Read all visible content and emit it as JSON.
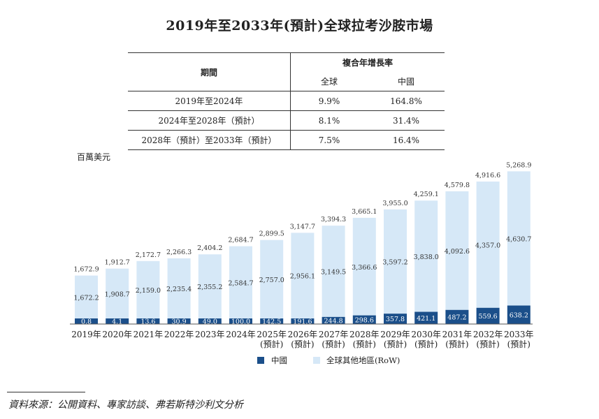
{
  "title": "2019年至2033年(預計)全球拉考沙胺市場",
  "cagr_table": {
    "header_period": "期間",
    "header_cagr": "複合年增長率",
    "header_global": "全球",
    "header_china": "中國",
    "rows": [
      {
        "period": "2019年至2024年",
        "global": "9.9%",
        "china": "164.8%"
      },
      {
        "period": "2024年至2028年（預計）",
        "global": "8.1%",
        "china": "31.4%"
      },
      {
        "period": "2028年（預計）至2033年（預計）",
        "global": "7.5%",
        "china": "16.4%"
      }
    ]
  },
  "unit_label": "百萬美元",
  "source": "資料來源：公開資料、專家訪談、弗若斯特沙利文分析",
  "colors": {
    "china": "#1b4f8a",
    "row": "#d6e8f7"
  },
  "chart_data": {
    "type": "bar",
    "stacked": true,
    "categories": [
      "2019年",
      "2020年",
      "2021年",
      "2022年",
      "2023年",
      "2024年",
      "2025年\n(預計)",
      "2026年\n(預計)",
      "2027年\n(預計)",
      "2028年\n(預計)",
      "2029年\n(預計)",
      "2030年\n(預計)",
      "2031年\n(預計)",
      "2032年\n(預計)",
      "2033年\n(預計)"
    ],
    "totals": [
      1672.9,
      1912.7,
      2172.7,
      2266.3,
      2404.2,
      2684.7,
      2899.5,
      3147.7,
      3394.3,
      3665.1,
      3955.0,
      4259.1,
      4579.8,
      4916.6,
      5268.9
    ],
    "total_labels": [
      "1,672.9",
      "1,912.7",
      "2,172.7",
      "2,266.3",
      "2,404.2",
      "2,684.7",
      "2,899.5",
      "3,147.7",
      "3,394.3",
      "3,665.1",
      "3,955.0",
      "4,259.1",
      "4,579.8",
      "4,916.6",
      "5,268.9"
    ],
    "series": [
      {
        "name": "中國",
        "values": [
          0.8,
          4.1,
          13.6,
          30.9,
          49.0,
          100.0,
          142.5,
          191.6,
          244.8,
          298.6,
          357.8,
          421.1,
          487.2,
          559.6,
          638.2
        ],
        "labels": [
          "0.8",
          "4.1",
          "13.6",
          "30.9",
          "49.0",
          "100.0",
          "142.5",
          "191.6",
          "244.8",
          "298.6",
          "357.8",
          "421.1",
          "487.2",
          "559.6",
          "638.2"
        ]
      },
      {
        "name": "全球其他地區(RoW)",
        "values": [
          1672.2,
          1908.7,
          2159.0,
          2235.4,
          2355.2,
          2584.7,
          2757.0,
          2956.1,
          3149.5,
          3366.6,
          3597.2,
          3838.0,
          4092.6,
          4357.0,
          4630.7
        ],
        "labels": [
          "1,672.2",
          "1,908.7",
          "2,159.0",
          "2,235.4",
          "2,355.2",
          "2,584.7",
          "2,757.0",
          "2,956.1",
          "3,149.5",
          "3,366.6",
          "3,597.2",
          "3,838.0",
          "4,092.6",
          "4,357.0",
          "4,630.7"
        ]
      }
    ],
    "ylabel": "百萬美元",
    "legend_position": "bottom-center",
    "grid": false
  }
}
